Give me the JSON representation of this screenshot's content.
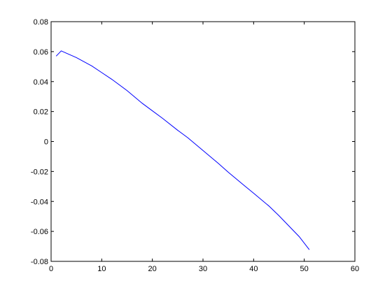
{
  "chart_data": {
    "type": "line",
    "title": "",
    "xlabel": "",
    "ylabel": "",
    "xlim": [
      0,
      60
    ],
    "ylim": [
      -0.08,
      0.08
    ],
    "x_ticks": [
      0,
      10,
      20,
      30,
      40,
      50,
      60
    ],
    "y_ticks": [
      -0.08,
      -0.06,
      -0.04,
      -0.02,
      0,
      0.02,
      0.04,
      0.06,
      0.08
    ],
    "x_tick_labels": [
      "0",
      "10",
      "20",
      "30",
      "40",
      "50",
      "60"
    ],
    "y_tick_labels": [
      "-0.08",
      "-0.06",
      "-0.04",
      "-0.02",
      "0",
      "0.02",
      "0.04",
      "0.06",
      "0.08"
    ],
    "grid": false,
    "legend": false,
    "series": [
      {
        "color": "#0000ff",
        "x": [
          1,
          2,
          3,
          5,
          8,
          10,
          12,
          15,
          18,
          20,
          22,
          25,
          27,
          30,
          33,
          35,
          38,
          40,
          43,
          45,
          47,
          49,
          51
        ],
        "y": [
          0.057,
          0.0605,
          0.059,
          0.056,
          0.0505,
          0.046,
          0.0415,
          0.034,
          0.0255,
          0.0205,
          0.0155,
          0.0075,
          0.0025,
          -0.006,
          -0.0145,
          -0.0205,
          -0.029,
          -0.0345,
          -0.043,
          -0.0495,
          -0.0565,
          -0.0635,
          -0.0722
        ]
      }
    ]
  }
}
